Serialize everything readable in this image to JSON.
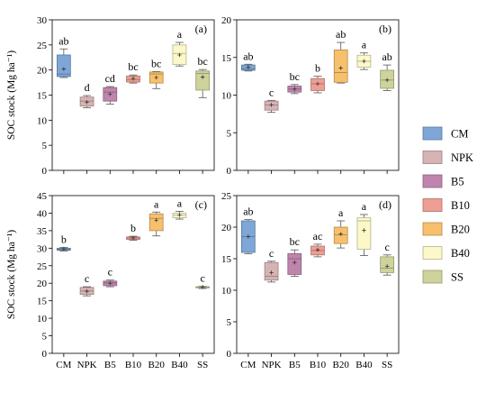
{
  "chart_data": {
    "type": "box",
    "treatments": [
      "CM",
      "NPK",
      "B5",
      "B10",
      "B20",
      "B40",
      "SS"
    ],
    "colors": {
      "CM": "#7ea6d6",
      "NPK": "#d8b3b3",
      "B5": "#c085ad",
      "B10": "#ef9e93",
      "B20": "#f7c06d",
      "B40": "#fdf8c8",
      "SS": "#cdd39a"
    },
    "legend": {
      "placement": "right",
      "entries": [
        "CM",
        "NPK",
        "B5",
        "B10",
        "B20",
        "B40",
        "SS"
      ]
    },
    "ylabel": "SOC stock (Mg ha⁻¹)",
    "panels": [
      {
        "label": "(a)",
        "ylim": [
          0,
          30
        ],
        "yticks": [
          "0",
          "5",
          "10",
          "15",
          "20",
          "25",
          "30"
        ],
        "boxes": [
          {
            "name": "CM",
            "min": 18.5,
            "q1": 18.7,
            "median": 19.2,
            "q3": 23.0,
            "max": 24.2,
            "mean": 20.2,
            "letter": "ab"
          },
          {
            "name": "NPK",
            "min": 12.5,
            "q1": 12.8,
            "median": 13.8,
            "q3": 14.6,
            "max": 14.9,
            "mean": 13.6,
            "letter": "d"
          },
          {
            "name": "B5",
            "min": 13.2,
            "q1": 13.8,
            "median": 15.6,
            "q3": 16.5,
            "max": 16.7,
            "mean": 15.2,
            "letter": "cd"
          },
          {
            "name": "B10",
            "min": 17.4,
            "q1": 17.6,
            "median": 18.1,
            "q3": 18.8,
            "max": 19.0,
            "mean": 18.3,
            "letter": "bc"
          },
          {
            "name": "B20",
            "min": 16.3,
            "q1": 17.4,
            "median": 19.2,
            "q3": 19.6,
            "max": 19.7,
            "mean": 18.5,
            "letter": "bc"
          },
          {
            "name": "B40",
            "min": 20.8,
            "q1": 21.1,
            "median": 23.3,
            "q3": 25.0,
            "max": 25.5,
            "mean": 23.0,
            "letter": "a"
          },
          {
            "name": "SS",
            "min": 14.5,
            "q1": 16.0,
            "median": 19.3,
            "q3": 19.8,
            "max": 20.1,
            "mean": 18.6,
            "letter": "bc"
          }
        ]
      },
      {
        "label": "(b)",
        "ylim": [
          0,
          20
        ],
        "yticks": [
          "0",
          "5",
          "10",
          "15",
          "20"
        ],
        "boxes": [
          {
            "name": "CM",
            "min": 13.2,
            "q1": 13.3,
            "median": 13.5,
            "q3": 14.0,
            "max": 14.1,
            "mean": 13.7,
            "letter": "ab"
          },
          {
            "name": "NPK",
            "min": 7.7,
            "q1": 8.0,
            "median": 8.7,
            "q3": 9.2,
            "max": 9.3,
            "mean": 8.7,
            "letter": "c"
          },
          {
            "name": "B5",
            "min": 10.2,
            "q1": 10.4,
            "median": 10.8,
            "q3": 11.2,
            "max": 11.4,
            "mean": 10.8,
            "letter": "bc"
          },
          {
            "name": "B10",
            "min": 10.3,
            "q1": 10.6,
            "median": 11.5,
            "q3": 12.2,
            "max": 12.5,
            "mean": 11.5,
            "letter": "b"
          },
          {
            "name": "B20",
            "min": 11.6,
            "q1": 11.7,
            "median": 13.0,
            "q3": 16.0,
            "max": 17.0,
            "mean": 13.6,
            "letter": "ab"
          },
          {
            "name": "B40",
            "min": 13.4,
            "q1": 13.7,
            "median": 14.5,
            "q3": 15.3,
            "max": 15.6,
            "mean": 14.5,
            "letter": "a"
          },
          {
            "name": "SS",
            "min": 10.6,
            "q1": 10.9,
            "median": 12.0,
            "q3": 13.3,
            "max": 14.0,
            "mean": 12.0,
            "letter": "ab"
          }
        ]
      },
      {
        "label": "(c)",
        "ylim": [
          0,
          45
        ],
        "yticks": [
          "0",
          "5",
          "10",
          "15",
          "20",
          "25",
          "30",
          "35",
          "40",
          "45"
        ],
        "boxes": [
          {
            "name": "CM",
            "min": 29.2,
            "q1": 29.4,
            "median": 29.7,
            "q3": 30.0,
            "max": 30.2,
            "mean": 29.8,
            "letter": "b"
          },
          {
            "name": "NPK",
            "min": 16.4,
            "q1": 16.8,
            "median": 17.8,
            "q3": 18.8,
            "max": 19.0,
            "mean": 17.7,
            "letter": "c"
          },
          {
            "name": "B5",
            "min": 19.0,
            "q1": 19.3,
            "median": 20.1,
            "q3": 20.6,
            "max": 20.9,
            "mean": 20.0,
            "letter": "c"
          },
          {
            "name": "B10",
            "min": 32.3,
            "q1": 32.5,
            "median": 32.9,
            "q3": 33.2,
            "max": 33.4,
            "mean": 32.9,
            "letter": "b"
          },
          {
            "name": "B20",
            "min": 33.5,
            "q1": 35.0,
            "median": 38.5,
            "q3": 39.8,
            "max": 40.3,
            "mean": 38.0,
            "letter": "a"
          },
          {
            "name": "B40",
            "min": 38.3,
            "q1": 38.7,
            "median": 39.4,
            "q3": 40.0,
            "max": 40.5,
            "mean": 39.5,
            "letter": "a"
          },
          {
            "name": "SS",
            "min": 18.5,
            "q1": 18.7,
            "median": 18.9,
            "q3": 19.0,
            "max": 19.1,
            "mean": 18.9,
            "letter": "c"
          }
        ]
      },
      {
        "label": "(d)",
        "ylim": [
          0,
          25
        ],
        "yticks": [
          "0",
          "5",
          "10",
          "15",
          "20",
          "25"
        ],
        "boxes": [
          {
            "name": "CM",
            "min": 15.8,
            "q1": 16.0,
            "median": 18.5,
            "q3": 21.0,
            "max": 21.2,
            "mean": 18.5,
            "letter": "ab"
          },
          {
            "name": "NPK",
            "min": 11.3,
            "q1": 11.6,
            "median": 12.2,
            "q3": 14.4,
            "max": 14.6,
            "mean": 12.8,
            "letter": "c"
          },
          {
            "name": "B5",
            "min": 12.2,
            "q1": 12.5,
            "median": 15.0,
            "q3": 15.8,
            "max": 16.4,
            "mean": 14.4,
            "letter": "bc"
          },
          {
            "name": "B10",
            "min": 15.3,
            "q1": 15.6,
            "median": 16.3,
            "q3": 17.0,
            "max": 17.3,
            "mean": 16.4,
            "letter": "ac"
          },
          {
            "name": "B20",
            "min": 16.7,
            "q1": 17.4,
            "median": 18.8,
            "q3": 20.0,
            "max": 21.0,
            "mean": 18.9,
            "letter": "a"
          },
          {
            "name": "B40",
            "min": 15.5,
            "q1": 16.5,
            "median": 21.0,
            "q3": 21.5,
            "max": 22.0,
            "mean": 19.5,
            "letter": "a"
          },
          {
            "name": "SS",
            "min": 12.4,
            "q1": 12.8,
            "median": 13.5,
            "q3": 15.3,
            "max": 15.6,
            "mean": 13.8,
            "letter": "c"
          }
        ]
      }
    ]
  }
}
